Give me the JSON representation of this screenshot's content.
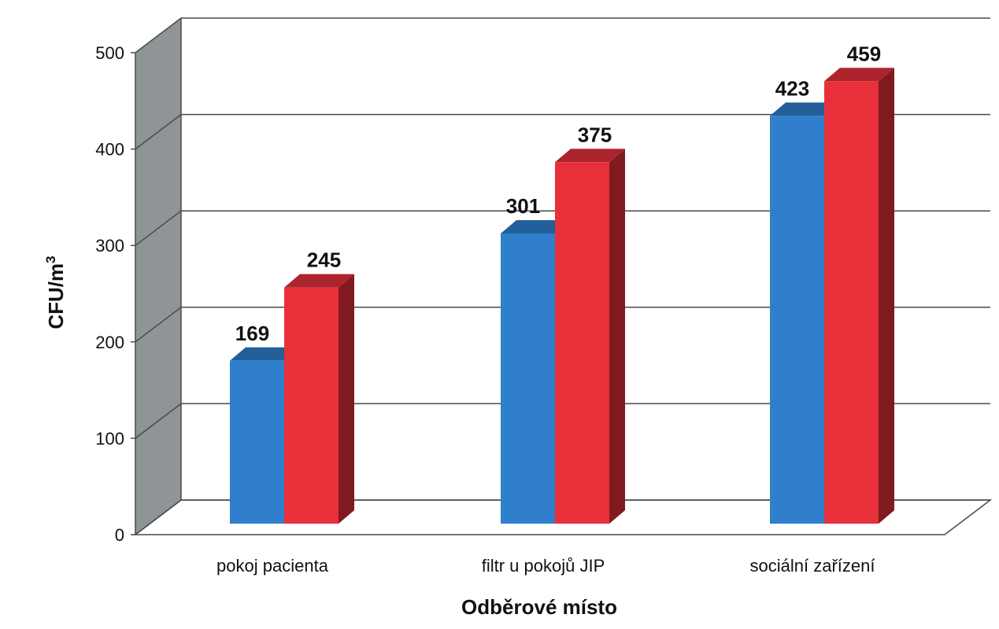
{
  "chart_data": {
    "type": "bar",
    "categories": [
      "pokoj pacienta",
      "filtr u pokojů JIP",
      "sociální zařízení"
    ],
    "series": [
      {
        "values": [
          169,
          301,
          423
        ],
        "color": "#2f7fcc"
      },
      {
        "values": [
          245,
          375,
          459
        ],
        "color": "#e8303a"
      }
    ],
    "xlabel": "Odběrové místo",
    "ylabel": "CFU/m",
    "ylabel_sup": "3",
    "ylim": [
      0,
      500
    ],
    "yticks": [
      0,
      100,
      200,
      300,
      400,
      500
    ],
    "grid": true,
    "wall_color": "#8f9596"
  }
}
